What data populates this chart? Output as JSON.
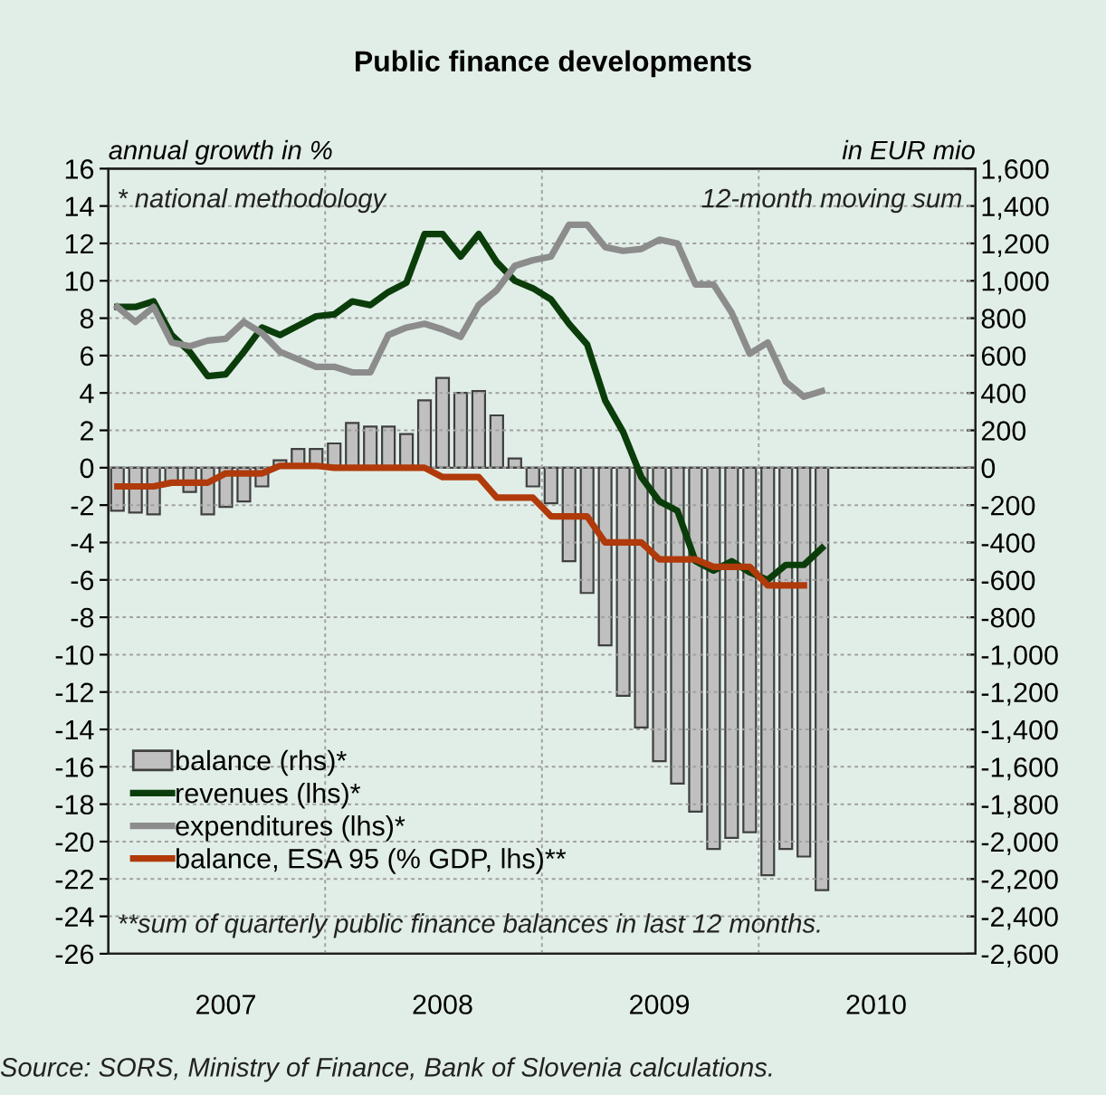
{
  "chart_data": {
    "type": "line",
    "title": "Public finance developments",
    "ylabel": "annual growth in %",
    "y2label": "in EUR mio",
    "annotations": [
      "* national methodology",
      "12-month moving sum",
      "**sum of quarterly public finance balances in last 12 months.",
      "Source: SORS, Ministry of Finance, Bank of Slovenia calculations."
    ],
    "categories": [
      null,
      null,
      null,
      null,
      null,
      null,
      "2007",
      null,
      null,
      null,
      null,
      null,
      null,
      null,
      null,
      null,
      null,
      null,
      "2008",
      null,
      null,
      null,
      null,
      null,
      null,
      null,
      null,
      null,
      null,
      null,
      "2009",
      null,
      null,
      null,
      null,
      null,
      null,
      null,
      null,
      null,
      null,
      null,
      "2010",
      null,
      null,
      null,
      null,
      null
    ],
    "series": [
      {
        "name": "balance (rhs)*",
        "type": "bar",
        "axis": "y2",
        "color": "#c0c0c0",
        "values": [
          -230,
          -240,
          -250,
          -80,
          -130,
          -250,
          -210,
          -180,
          -100,
          40,
          100,
          100,
          130,
          240,
          220,
          220,
          180,
          360,
          480,
          400,
          410,
          280,
          50,
          -100,
          -190,
          -500,
          -670,
          -950,
          -1220,
          -1390,
          -1570,
          -1690,
          -1840,
          -2040,
          -1980,
          -1950,
          -2180,
          -2040,
          -2080,
          -2260,
          null,
          null,
          null,
          null,
          null,
          null,
          null,
          null
        ]
      },
      {
        "name": "revenues (lhs)*",
        "color": "#0b3d0b",
        "values": [
          8.6,
          8.6,
          8.9,
          7.1,
          6.2,
          4.9,
          5.0,
          6.2,
          7.5,
          7.1,
          7.6,
          8.1,
          8.2,
          8.9,
          8.7,
          9.4,
          9.9,
          12.5,
          12.5,
          11.3,
          12.5,
          11.0,
          10.0,
          9.6,
          9.0,
          7.7,
          6.6,
          3.6,
          1.9,
          -0.5,
          -1.8,
          -2.3,
          -5.0,
          -5.5,
          -5.0,
          -5.6,
          -6.0,
          -5.2,
          -5.2,
          -4.3,
          null,
          null,
          null,
          null,
          null,
          null,
          null,
          null
        ]
      },
      {
        "name": "expenditures (lhs)*",
        "color": "#8c8c8c",
        "values": [
          8.6,
          7.8,
          8.6,
          6.7,
          6.5,
          6.8,
          6.9,
          7.8,
          7.2,
          6.2,
          5.8,
          5.4,
          5.4,
          5.1,
          5.1,
          7.1,
          7.5,
          7.7,
          7.4,
          7.0,
          8.7,
          9.5,
          10.8,
          11.1,
          11.3,
          13.0,
          13.0,
          11.8,
          11.6,
          11.7,
          12.2,
          12.0,
          9.8,
          9.8,
          8.3,
          6.1,
          6.7,
          4.6,
          3.8,
          4.1,
          null,
          null,
          null,
          null,
          null,
          null,
          null,
          null
        ]
      },
      {
        "name": "balance, ESA 95 (% GDP, lhs)**",
        "color": "#b03a0a",
        "values": [
          -1.0,
          -1.0,
          -1.0,
          -0.8,
          -0.8,
          -0.8,
          -0.3,
          -0.3,
          -0.3,
          0.1,
          0.1,
          0.1,
          0.0,
          0.0,
          0.0,
          0.0,
          0.0,
          0.0,
          -0.5,
          -0.5,
          -0.5,
          -1.6,
          -1.6,
          -1.6,
          -2.6,
          -2.6,
          -2.6,
          -4.0,
          -4.0,
          -4.0,
          -4.9,
          -4.9,
          -4.9,
          -5.3,
          -5.3,
          -5.3,
          -6.3,
          -6.3,
          -6.3,
          null,
          null,
          null,
          null,
          null,
          null,
          null,
          null,
          null
        ]
      }
    ],
    "ylim": [
      -26,
      16
    ],
    "yticks": [
      -26,
      -24,
      -22,
      -20,
      -18,
      -16,
      -14,
      -12,
      -10,
      -8,
      -6,
      -4,
      -2,
      0,
      2,
      4,
      6,
      8,
      10,
      12,
      14,
      16
    ],
    "y2lim": [
      -2600,
      1600
    ],
    "y2ticks": [
      {
        "value": -2600,
        "label": "-2,600"
      },
      {
        "value": -2400,
        "label": "-2,400"
      },
      {
        "value": -2200,
        "label": "-2,200"
      },
      {
        "value": -2000,
        "label": "-2,000"
      },
      {
        "value": -1800,
        "label": "-1,800"
      },
      {
        "value": -1600,
        "label": "-1,600"
      },
      {
        "value": -1400,
        "label": "-1,400"
      },
      {
        "value": -1200,
        "label": "-1,200"
      },
      {
        "value": -1000,
        "label": "-1,000"
      },
      -800,
      -600,
      -400,
      -200,
      0,
      200,
      400,
      600,
      800,
      {
        "value": 1000,
        "label": "1,000"
      },
      {
        "value": 1200,
        "label": "1,200"
      },
      {
        "value": 1400,
        "label": "1,400"
      },
      {
        "value": 1600,
        "label": "1,600"
      }
    ],
    "grid": true,
    "legend": "bottom left",
    "line_style": "solid",
    "marker": "none"
  }
}
